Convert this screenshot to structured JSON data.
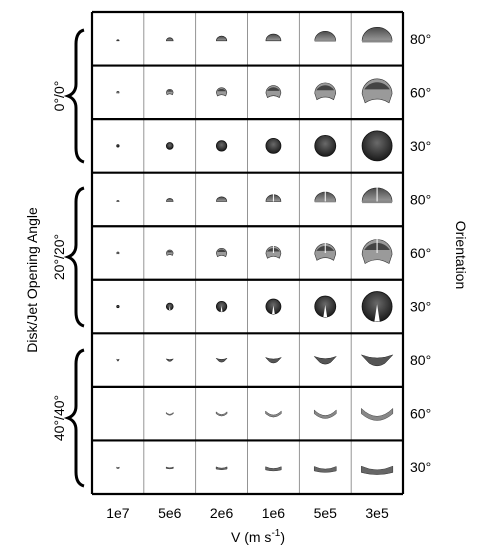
{
  "figure": {
    "y_axis_title": "Disk/Jet Opening Angle",
    "x_axis_title": "V (m s",
    "x_axis_title_exp": "-1",
    "x_axis_title_close": ")",
    "right_axis_title": "Orientation",
    "velocity_labels": [
      "1e7",
      "5e6",
      "2e6",
      "1e6",
      "5e5",
      "3e5"
    ],
    "groups": [
      {
        "label": "0°/0°",
        "orientations": [
          "80°",
          "60°",
          "30°"
        ]
      },
      {
        "label": "20°/20°",
        "orientations": [
          "80°",
          "60°",
          "30°"
        ]
      },
      {
        "label": "40°/40°",
        "orientations": [
          "80°",
          "60°",
          "30°"
        ]
      }
    ]
  },
  "colors": {
    "frame": "#000000",
    "grid": "#777777",
    "shell_light": "#b8b8b8",
    "shell_mid": "#7a7a7a",
    "shell_dark": "#2a2a2a"
  }
}
